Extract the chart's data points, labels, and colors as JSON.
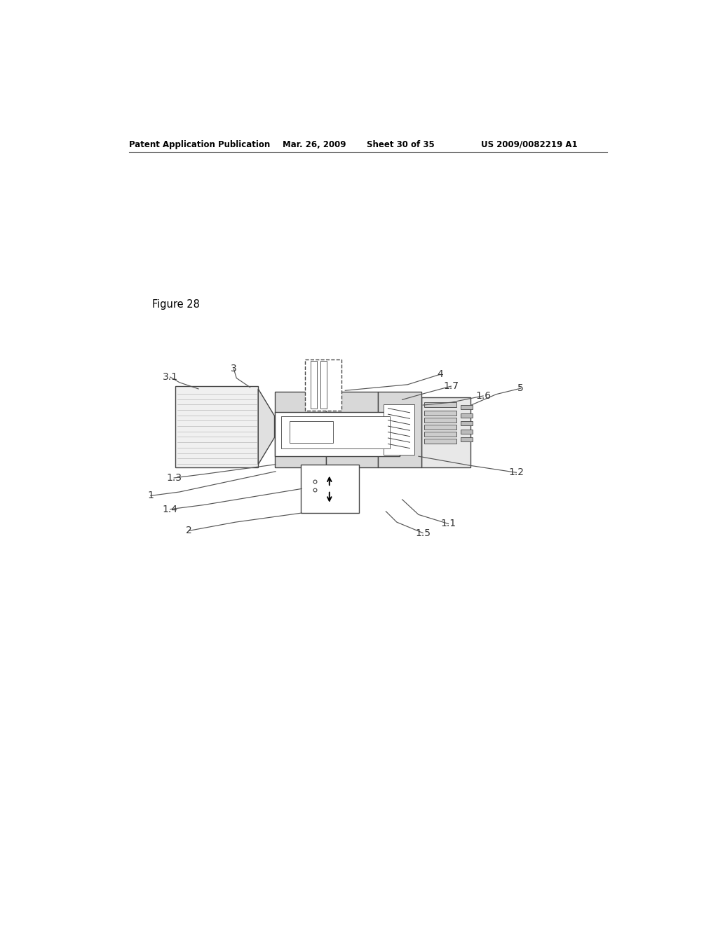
{
  "title_header": "Patent Application Publication",
  "date_header": "Mar. 26, 2009",
  "sheet_header": "Sheet 30 of 35",
  "patent_header": "US 2009/0082219 A1",
  "figure_label": "Figure 28",
  "bg_color": "#ffffff",
  "line_color": "#444444",
  "label_color": "#333333",
  "header_color": "#000000",
  "hatch_fc": "#d8d8d8",
  "white": "#ffffff",
  "light_gray": "#f0f0f0"
}
